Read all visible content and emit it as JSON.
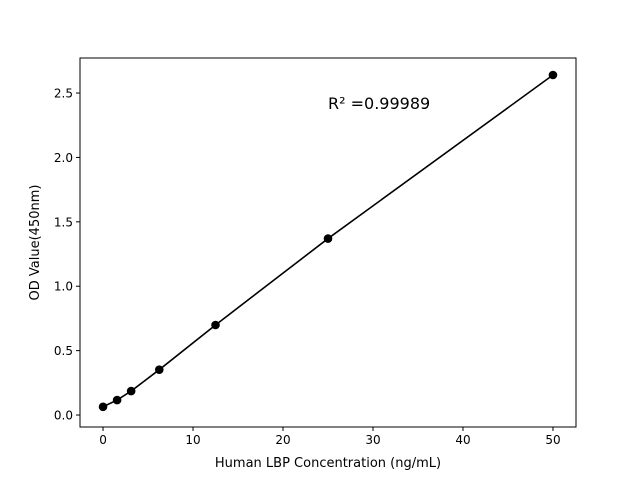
{
  "chart_data": {
    "type": "line",
    "title": "",
    "xlabel": "Human LBP Concentration (ng/mL)",
    "ylabel": "OD Value(450nm)",
    "annotation": "R² =0.99989",
    "xlim": [
      -2.56,
      52.56
    ],
    "ylim": [
      -0.093,
      2.772
    ],
    "xticks": [
      0,
      10,
      20,
      30,
      40,
      50
    ],
    "xtick_labels": [
      "0",
      "10",
      "20",
      "30",
      "40",
      "50"
    ],
    "yticks": [
      0.0,
      0.5,
      1.0,
      1.5,
      2.0,
      2.5
    ],
    "ytick_labels": [
      "0.0",
      "0.5",
      "1.0",
      "1.5",
      "2.0",
      "2.5"
    ],
    "grid": false,
    "series": [
      {
        "x": [
          0,
          1.5625,
          3.125,
          6.25,
          12.5,
          25,
          50
        ],
        "y": [
          0.064,
          0.116,
          0.186,
          0.352,
          0.699,
          1.37,
          2.64
        ],
        "color": "#000000",
        "marker": "circle"
      }
    ]
  }
}
